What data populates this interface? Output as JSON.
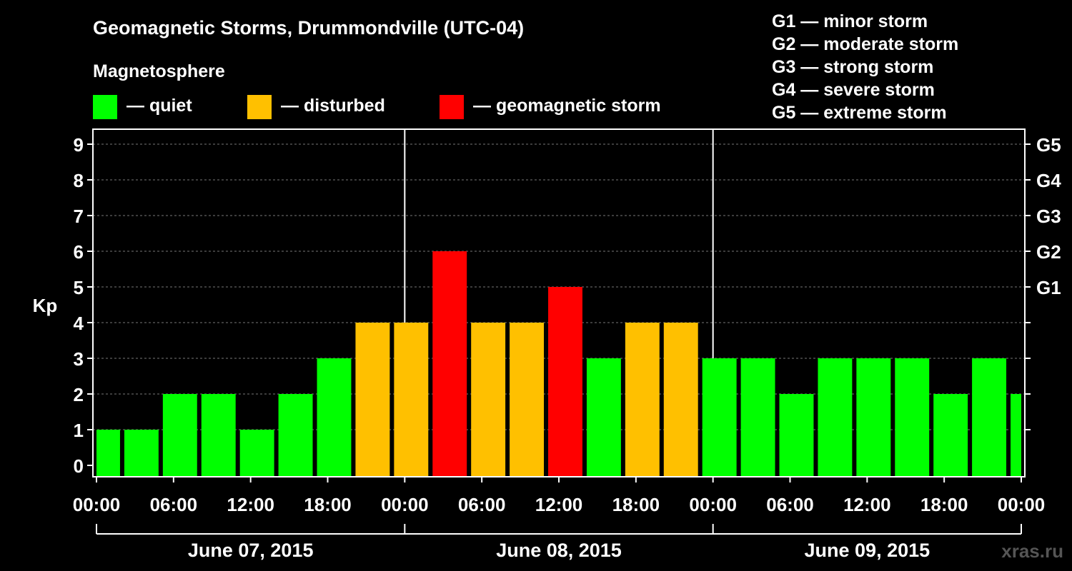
{
  "title": "Geomagnetic Storms, Drummondville (UTC-04)",
  "magnetosphere_label": "Magnetosphere",
  "legend": [
    {
      "color": "#00ff00",
      "label": "— quiet"
    },
    {
      "color": "#ffc000",
      "label": "— disturbed"
    },
    {
      "color": "#ff0000",
      "label": "— geomagnetic storm"
    }
  ],
  "g_levels": [
    {
      "id": "G1",
      "text": "G1 — minor storm"
    },
    {
      "id": "G2",
      "text": "G2 — moderate storm"
    },
    {
      "id": "G3",
      "text": "G3 — strong storm"
    },
    {
      "id": "G4",
      "text": "G4 — severe storm"
    },
    {
      "id": "G5",
      "text": "G5 — extreme storm"
    }
  ],
  "watermark": "xras.ru",
  "chart_data": {
    "type": "bar",
    "ylabel": "Kp",
    "ylim": [
      0,
      9
    ],
    "yticks": [
      0,
      1,
      2,
      3,
      4,
      5,
      6,
      7,
      8,
      9
    ],
    "right_ticks": [
      {
        "value": 5,
        "label": "G1"
      },
      {
        "value": 6,
        "label": "G2"
      },
      {
        "value": 7,
        "label": "G3"
      },
      {
        "value": 8,
        "label": "G4"
      },
      {
        "value": 9,
        "label": "G5"
      }
    ],
    "grid": "horizontal dashed",
    "x_start": "2015-06-07 00:00",
    "x_end": "2015-06-10 00:00",
    "xtick_labels": [
      "00:00",
      "06:00",
      "12:00",
      "18:00",
      "00:00",
      "06:00",
      "12:00",
      "18:00",
      "00:00",
      "06:00",
      "12:00",
      "18:00",
      "00:00"
    ],
    "dates": [
      "June 07, 2015",
      "June 08, 2015",
      "June 09, 2015"
    ],
    "colors": {
      "quiet": "#00ff00",
      "disturbed": "#ffc000",
      "storm": "#ff0000"
    },
    "bars": [
      {
        "start": "2015-06-07 00:00",
        "end": "2015-06-07 02:00",
        "kp": 1,
        "level": "quiet"
      },
      {
        "start": "2015-06-07 02:00",
        "end": "2015-06-07 05:00",
        "kp": 1,
        "level": "quiet"
      },
      {
        "start": "2015-06-07 05:00",
        "end": "2015-06-07 08:00",
        "kp": 2,
        "level": "quiet"
      },
      {
        "start": "2015-06-07 08:00",
        "end": "2015-06-07 11:00",
        "kp": 2,
        "level": "quiet"
      },
      {
        "start": "2015-06-07 11:00",
        "end": "2015-06-07 14:00",
        "kp": 1,
        "level": "quiet"
      },
      {
        "start": "2015-06-07 14:00",
        "end": "2015-06-07 17:00",
        "kp": 2,
        "level": "quiet"
      },
      {
        "start": "2015-06-07 17:00",
        "end": "2015-06-07 20:00",
        "kp": 3,
        "level": "quiet"
      },
      {
        "start": "2015-06-07 20:00",
        "end": "2015-06-07 23:00",
        "kp": 4,
        "level": "disturbed"
      },
      {
        "start": "2015-06-07 23:00",
        "end": "2015-06-08 02:00",
        "kp": 4,
        "level": "disturbed"
      },
      {
        "start": "2015-06-08 02:00",
        "end": "2015-06-08 05:00",
        "kp": 6,
        "level": "storm"
      },
      {
        "start": "2015-06-08 05:00",
        "end": "2015-06-08 08:00",
        "kp": 4,
        "level": "disturbed"
      },
      {
        "start": "2015-06-08 08:00",
        "end": "2015-06-08 11:00",
        "kp": 4,
        "level": "disturbed"
      },
      {
        "start": "2015-06-08 11:00",
        "end": "2015-06-08 14:00",
        "kp": 5,
        "level": "storm"
      },
      {
        "start": "2015-06-08 14:00",
        "end": "2015-06-08 17:00",
        "kp": 3,
        "level": "quiet"
      },
      {
        "start": "2015-06-08 17:00",
        "end": "2015-06-08 20:00",
        "kp": 4,
        "level": "disturbed"
      },
      {
        "start": "2015-06-08 20:00",
        "end": "2015-06-08 23:00",
        "kp": 4,
        "level": "disturbed"
      },
      {
        "start": "2015-06-08 23:00",
        "end": "2015-06-09 02:00",
        "kp": 3,
        "level": "quiet"
      },
      {
        "start": "2015-06-09 02:00",
        "end": "2015-06-09 05:00",
        "kp": 3,
        "level": "quiet"
      },
      {
        "start": "2015-06-09 05:00",
        "end": "2015-06-09 08:00",
        "kp": 2,
        "level": "quiet"
      },
      {
        "start": "2015-06-09 08:00",
        "end": "2015-06-09 11:00",
        "kp": 3,
        "level": "quiet"
      },
      {
        "start": "2015-06-09 11:00",
        "end": "2015-06-09 14:00",
        "kp": 3,
        "level": "quiet"
      },
      {
        "start": "2015-06-09 14:00",
        "end": "2015-06-09 17:00",
        "kp": 3,
        "level": "quiet"
      },
      {
        "start": "2015-06-09 17:00",
        "end": "2015-06-09 20:00",
        "kp": 2,
        "level": "quiet"
      },
      {
        "start": "2015-06-09 20:00",
        "end": "2015-06-09 23:00",
        "kp": 3,
        "level": "quiet"
      },
      {
        "start": "2015-06-09 23:00",
        "end": "2015-06-10 00:00",
        "kp": 2,
        "level": "quiet"
      }
    ]
  }
}
